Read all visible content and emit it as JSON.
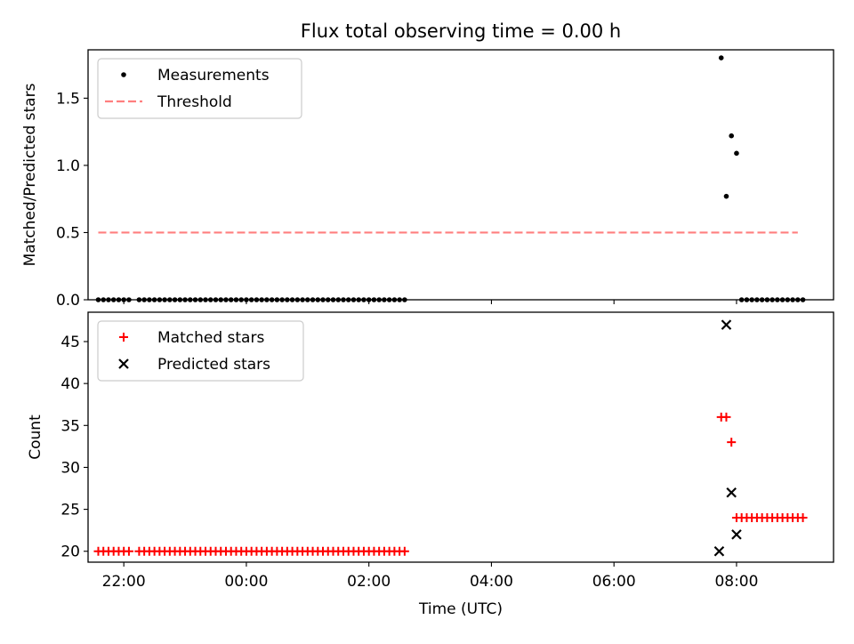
{
  "chart_data": [
    {
      "type": "scatter",
      "title": "Flux total observing time = 0.00 h",
      "xlabel": "",
      "ylabel": "Matched/Predicted stars",
      "xlim": [
        "21:25",
        "09:35"
      ],
      "ylim": [
        0,
        1.86
      ],
      "xticks": [
        "22:00",
        "00:00",
        "02:00",
        "04:00",
        "06:00",
        "08:00"
      ],
      "yticks": [
        "0.0",
        "0.5",
        "1.0",
        "1.5"
      ],
      "grid": false,
      "legend_position": "upper left",
      "series": [
        {
          "name": "Measurements",
          "marker": "dot",
          "color": "#000000",
          "points": [
            {
              "x": "21:35",
              "y": 0
            },
            {
              "x": "21:40",
              "y": 0
            },
            {
              "x": "21:45",
              "y": 0
            },
            {
              "x": "21:50",
              "y": 0
            },
            {
              "x": "21:55",
              "y": 0
            },
            {
              "x": "22:00",
              "y": 0
            },
            {
              "x": "22:05",
              "y": 0
            },
            {
              "x": "22:15",
              "y": 0
            },
            {
              "x": "22:20",
              "y": 0
            },
            {
              "x": "22:25",
              "y": 0
            },
            {
              "x": "22:30",
              "y": 0
            },
            {
              "x": "22:35",
              "y": 0
            },
            {
              "x": "22:40",
              "y": 0
            },
            {
              "x": "22:45",
              "y": 0
            },
            {
              "x": "22:50",
              "y": 0
            },
            {
              "x": "22:55",
              "y": 0
            },
            {
              "x": "23:00",
              "y": 0
            },
            {
              "x": "23:05",
              "y": 0
            },
            {
              "x": "23:10",
              "y": 0
            },
            {
              "x": "23:15",
              "y": 0
            },
            {
              "x": "23:20",
              "y": 0
            },
            {
              "x": "23:25",
              "y": 0
            },
            {
              "x": "23:30",
              "y": 0
            },
            {
              "x": "23:35",
              "y": 0
            },
            {
              "x": "23:40",
              "y": 0
            },
            {
              "x": "23:45",
              "y": 0
            },
            {
              "x": "23:50",
              "y": 0
            },
            {
              "x": "23:55",
              "y": 0
            },
            {
              "x": "00:00",
              "y": 0
            },
            {
              "x": "00:05",
              "y": 0
            },
            {
              "x": "00:10",
              "y": 0
            },
            {
              "x": "00:15",
              "y": 0
            },
            {
              "x": "00:20",
              "y": 0
            },
            {
              "x": "00:25",
              "y": 0
            },
            {
              "x": "00:30",
              "y": 0
            },
            {
              "x": "00:35",
              "y": 0
            },
            {
              "x": "00:40",
              "y": 0
            },
            {
              "x": "00:45",
              "y": 0
            },
            {
              "x": "00:50",
              "y": 0
            },
            {
              "x": "00:55",
              "y": 0
            },
            {
              "x": "01:00",
              "y": 0
            },
            {
              "x": "01:05",
              "y": 0
            },
            {
              "x": "01:10",
              "y": 0
            },
            {
              "x": "01:15",
              "y": 0
            },
            {
              "x": "01:20",
              "y": 0
            },
            {
              "x": "01:25",
              "y": 0
            },
            {
              "x": "01:30",
              "y": 0
            },
            {
              "x": "01:35",
              "y": 0
            },
            {
              "x": "01:40",
              "y": 0
            },
            {
              "x": "01:45",
              "y": 0
            },
            {
              "x": "01:50",
              "y": 0
            },
            {
              "x": "01:55",
              "y": 0
            },
            {
              "x": "02:00",
              "y": 0
            },
            {
              "x": "02:05",
              "y": 0
            },
            {
              "x": "02:10",
              "y": 0
            },
            {
              "x": "02:15",
              "y": 0
            },
            {
              "x": "02:20",
              "y": 0
            },
            {
              "x": "02:25",
              "y": 0
            },
            {
              "x": "02:30",
              "y": 0
            },
            {
              "x": "02:35",
              "y": 0
            },
            {
              "x": "07:45",
              "y": 1.8
            },
            {
              "x": "07:50",
              "y": 0.77
            },
            {
              "x": "07:55",
              "y": 1.22
            },
            {
              "x": "08:00",
              "y": 1.09
            },
            {
              "x": "08:05",
              "y": 0
            },
            {
              "x": "08:10",
              "y": 0
            },
            {
              "x": "08:15",
              "y": 0
            },
            {
              "x": "08:20",
              "y": 0
            },
            {
              "x": "08:25",
              "y": 0
            },
            {
              "x": "08:30",
              "y": 0
            },
            {
              "x": "08:35",
              "y": 0
            },
            {
              "x": "08:40",
              "y": 0
            },
            {
              "x": "08:45",
              "y": 0
            },
            {
              "x": "08:50",
              "y": 0
            },
            {
              "x": "08:55",
              "y": 0
            },
            {
              "x": "09:00",
              "y": 0
            },
            {
              "x": "09:05",
              "y": 0
            }
          ]
        },
        {
          "name": "Threshold",
          "marker": "dashed-line",
          "color": "#ff7f7f",
          "points": [
            {
              "x": "21:35",
              "y": 0.5
            },
            {
              "x": "09:00",
              "y": 0.5
            }
          ]
        }
      ]
    },
    {
      "type": "scatter",
      "title": "",
      "xlabel": "Time (UTC)",
      "ylabel": "Count",
      "xlim": [
        "21:25",
        "09:35"
      ],
      "ylim": [
        18.7,
        48.5
      ],
      "xticks": [
        "22:00",
        "00:00",
        "02:00",
        "04:00",
        "06:00",
        "08:00"
      ],
      "yticks": [
        "20",
        "25",
        "30",
        "35",
        "40",
        "45"
      ],
      "grid": false,
      "legend_position": "upper left",
      "series": [
        {
          "name": "Matched stars",
          "marker": "plus",
          "color": "#ff0000",
          "points": [
            {
              "x": "21:35",
              "y": 20
            },
            {
              "x": "21:40",
              "y": 20
            },
            {
              "x": "21:45",
              "y": 20
            },
            {
              "x": "21:50",
              "y": 20
            },
            {
              "x": "21:55",
              "y": 20
            },
            {
              "x": "22:00",
              "y": 20
            },
            {
              "x": "22:05",
              "y": 20
            },
            {
              "x": "22:15",
              "y": 20
            },
            {
              "x": "22:20",
              "y": 20
            },
            {
              "x": "22:25",
              "y": 20
            },
            {
              "x": "22:30",
              "y": 20
            },
            {
              "x": "22:35",
              "y": 20
            },
            {
              "x": "22:40",
              "y": 20
            },
            {
              "x": "22:45",
              "y": 20
            },
            {
              "x": "22:50",
              "y": 20
            },
            {
              "x": "22:55",
              "y": 20
            },
            {
              "x": "23:00",
              "y": 20
            },
            {
              "x": "23:05",
              "y": 20
            },
            {
              "x": "23:10",
              "y": 20
            },
            {
              "x": "23:15",
              "y": 20
            },
            {
              "x": "23:20",
              "y": 20
            },
            {
              "x": "23:25",
              "y": 20
            },
            {
              "x": "23:30",
              "y": 20
            },
            {
              "x": "23:35",
              "y": 20
            },
            {
              "x": "23:40",
              "y": 20
            },
            {
              "x": "23:45",
              "y": 20
            },
            {
              "x": "23:50",
              "y": 20
            },
            {
              "x": "23:55",
              "y": 20
            },
            {
              "x": "00:00",
              "y": 20
            },
            {
              "x": "00:05",
              "y": 20
            },
            {
              "x": "00:10",
              "y": 20
            },
            {
              "x": "00:15",
              "y": 20
            },
            {
              "x": "00:20",
              "y": 20
            },
            {
              "x": "00:25",
              "y": 20
            },
            {
              "x": "00:30",
              "y": 20
            },
            {
              "x": "00:35",
              "y": 20
            },
            {
              "x": "00:40",
              "y": 20
            },
            {
              "x": "00:45",
              "y": 20
            },
            {
              "x": "00:50",
              "y": 20
            },
            {
              "x": "00:55",
              "y": 20
            },
            {
              "x": "01:00",
              "y": 20
            },
            {
              "x": "01:05",
              "y": 20
            },
            {
              "x": "01:10",
              "y": 20
            },
            {
              "x": "01:15",
              "y": 20
            },
            {
              "x": "01:20",
              "y": 20
            },
            {
              "x": "01:25",
              "y": 20
            },
            {
              "x": "01:30",
              "y": 20
            },
            {
              "x": "01:35",
              "y": 20
            },
            {
              "x": "01:40",
              "y": 20
            },
            {
              "x": "01:45",
              "y": 20
            },
            {
              "x": "01:50",
              "y": 20
            },
            {
              "x": "01:55",
              "y": 20
            },
            {
              "x": "02:00",
              "y": 20
            },
            {
              "x": "02:05",
              "y": 20
            },
            {
              "x": "02:10",
              "y": 20
            },
            {
              "x": "02:15",
              "y": 20
            },
            {
              "x": "02:20",
              "y": 20
            },
            {
              "x": "02:25",
              "y": 20
            },
            {
              "x": "02:30",
              "y": 20
            },
            {
              "x": "02:35",
              "y": 20
            },
            {
              "x": "07:45",
              "y": 36
            },
            {
              "x": "07:50",
              "y": 36
            },
            {
              "x": "07:55",
              "y": 33
            },
            {
              "x": "08:00",
              "y": 24
            },
            {
              "x": "08:05",
              "y": 24
            },
            {
              "x": "08:10",
              "y": 24
            },
            {
              "x": "08:15",
              "y": 24
            },
            {
              "x": "08:20",
              "y": 24
            },
            {
              "x": "08:25",
              "y": 24
            },
            {
              "x": "08:30",
              "y": 24
            },
            {
              "x": "08:35",
              "y": 24
            },
            {
              "x": "08:40",
              "y": 24
            },
            {
              "x": "08:45",
              "y": 24
            },
            {
              "x": "08:50",
              "y": 24
            },
            {
              "x": "08:55",
              "y": 24
            },
            {
              "x": "09:00",
              "y": 24
            },
            {
              "x": "09:05",
              "y": 24
            }
          ]
        },
        {
          "name": "Predicted stars",
          "marker": "x",
          "color": "#000000",
          "points": [
            {
              "x": "07:43",
              "y": 20
            },
            {
              "x": "07:50",
              "y": 47
            },
            {
              "x": "07:55",
              "y": 27
            },
            {
              "x": "08:00",
              "y": 22
            }
          ]
        }
      ]
    }
  ]
}
